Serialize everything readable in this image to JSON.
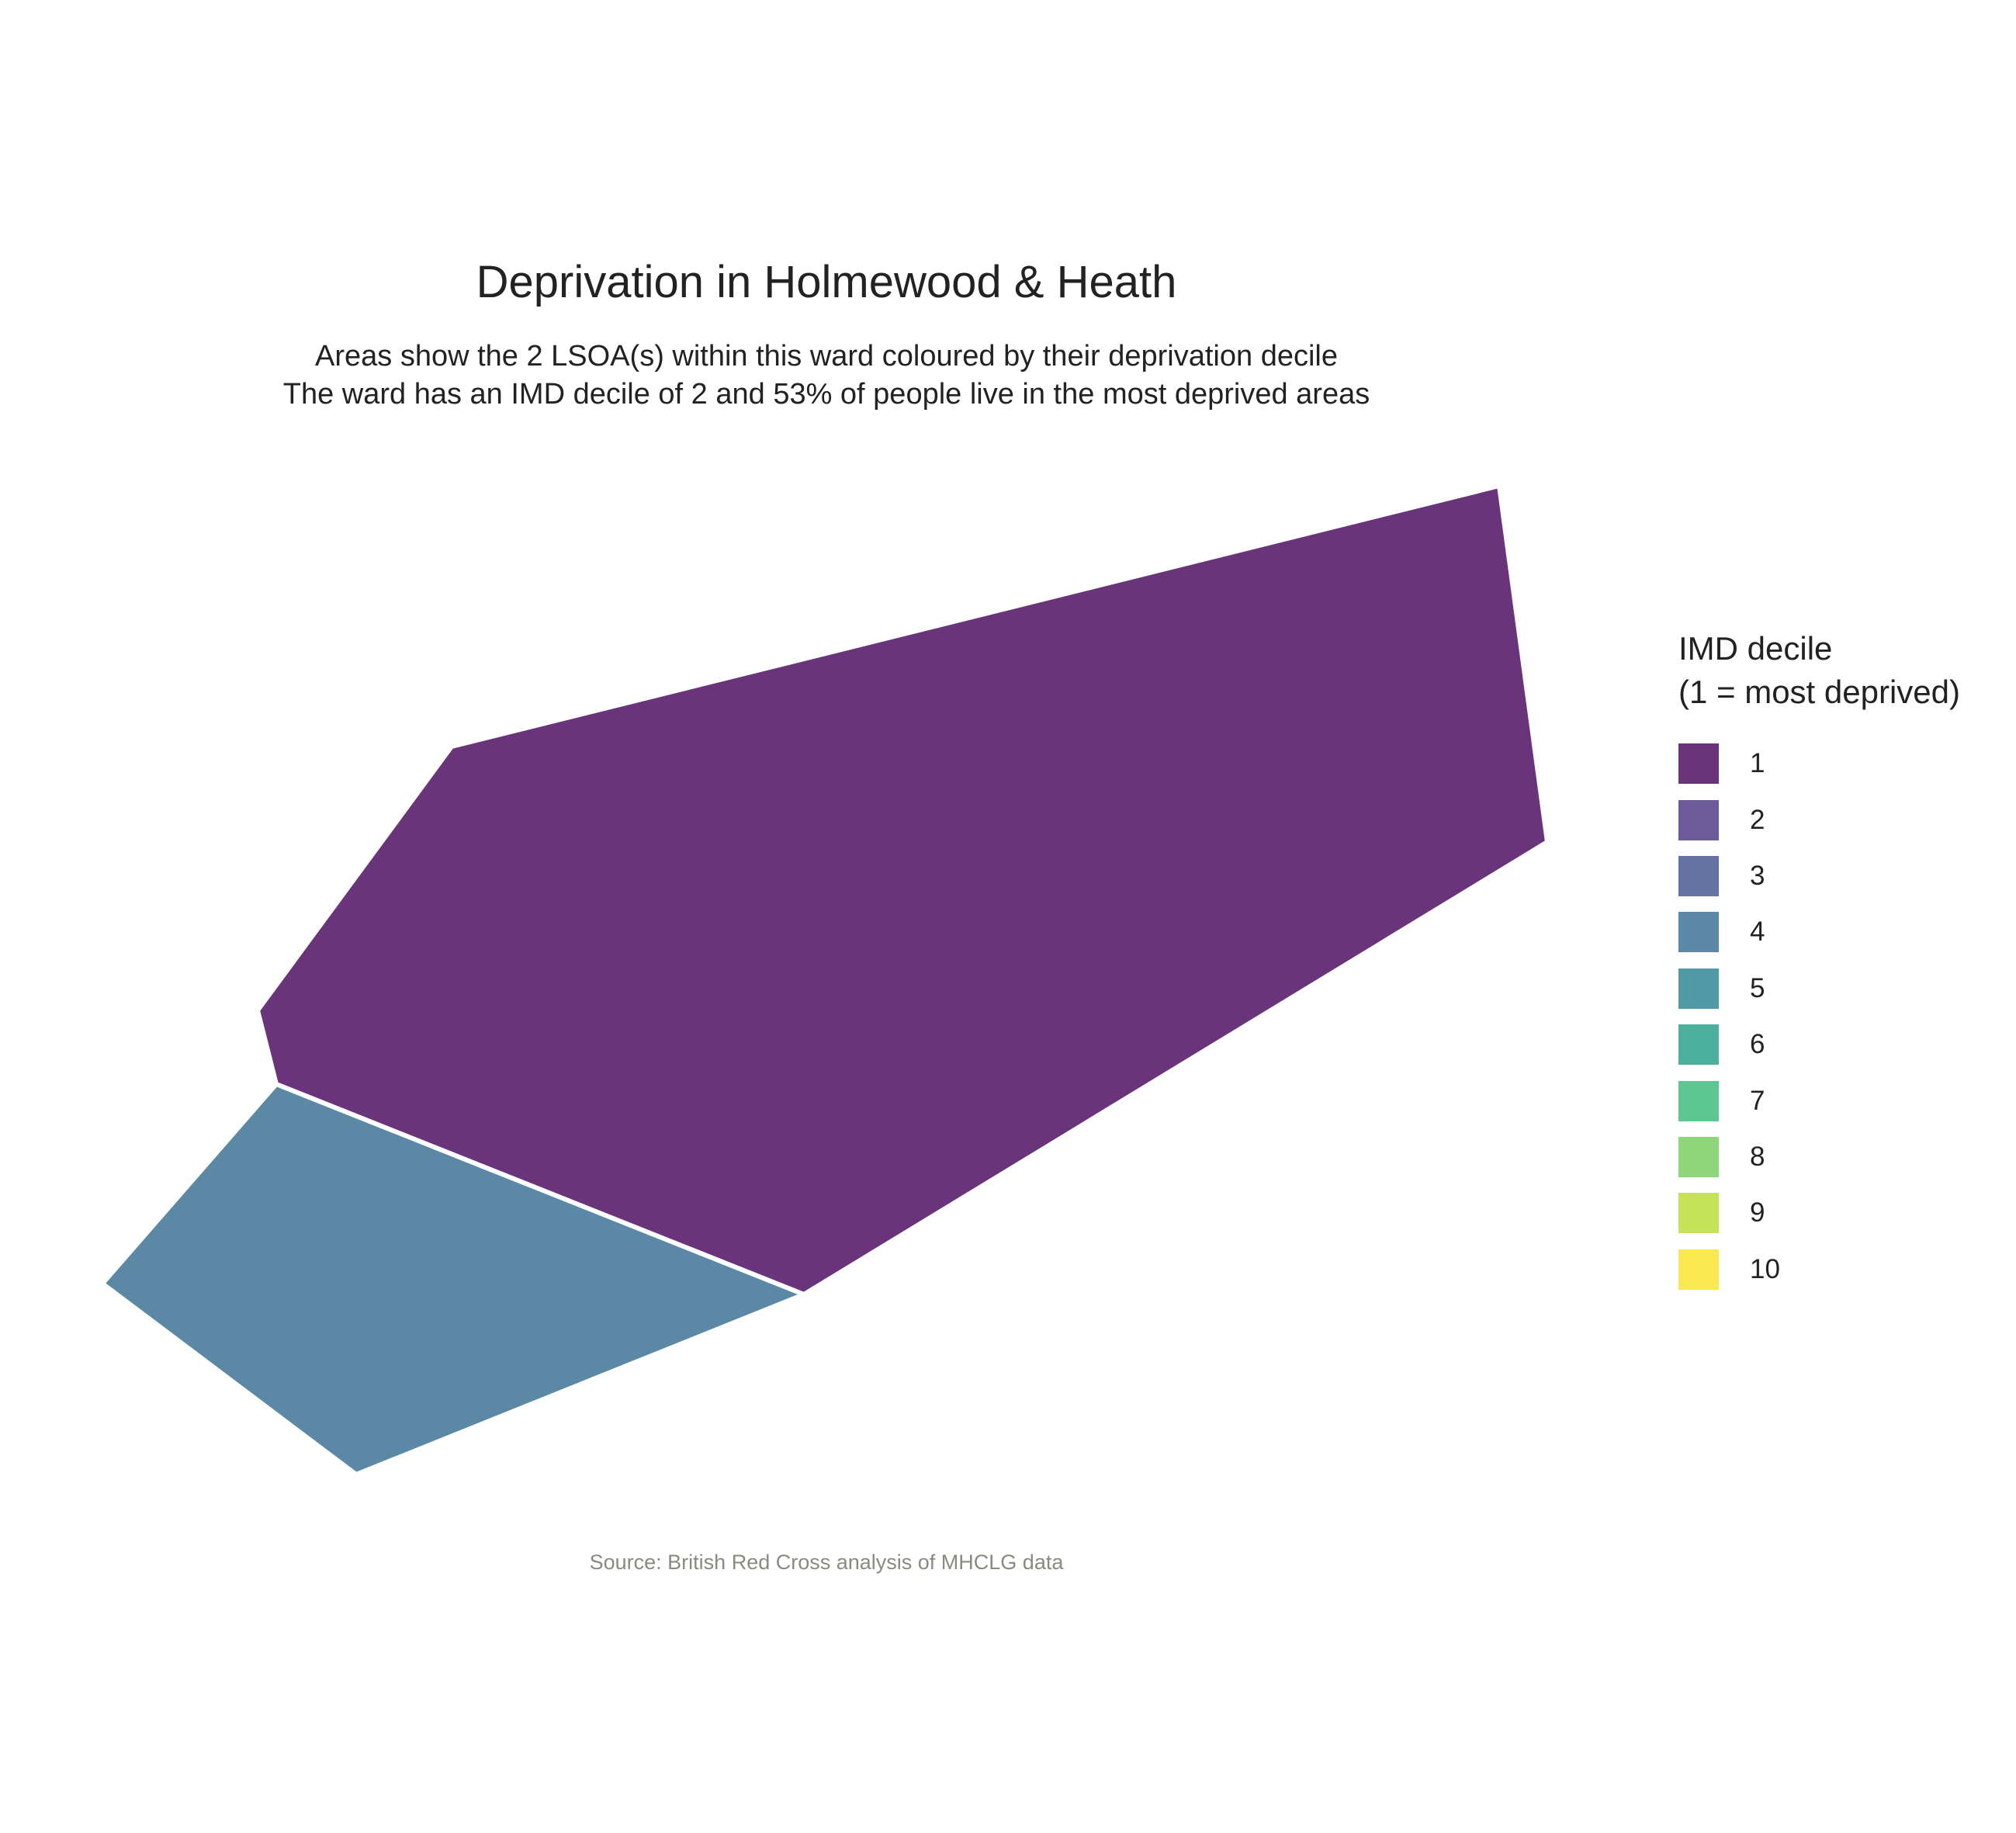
{
  "title": "Deprivation in Holmewood & Heath",
  "subtitle_line1": "Areas show the 2 LSOA(s) within this ward coloured by their deprivation decile",
  "subtitle_line2": "The ward has an IMD decile of 2 and 53% of people live in the most deprived areas",
  "caption": "Source: British Red Cross analysis of MHCLG data",
  "map": {
    "areas": [
      {
        "decile": 1,
        "color": "#69347a"
      },
      {
        "decile": 4,
        "color": "#5a88a5"
      }
    ]
  },
  "legend": {
    "title_line1": "IMD decile",
    "title_line2": "(1 = most deprived)",
    "items": [
      {
        "label": "1",
        "color": "#69347a"
      },
      {
        "label": "2",
        "color": "#6d5a9b"
      },
      {
        "label": "3",
        "color": "#6573a4"
      },
      {
        "label": "4",
        "color": "#5a88a5"
      },
      {
        "label": "5",
        "color": "#529aa5"
      },
      {
        "label": "6",
        "color": "#4cae9c"
      },
      {
        "label": "7",
        "color": "#5ec690"
      },
      {
        "label": "8",
        "color": "#8ed679"
      },
      {
        "label": "9",
        "color": "#c6e259"
      },
      {
        "label": "10",
        "color": "#fae852"
      }
    ]
  }
}
